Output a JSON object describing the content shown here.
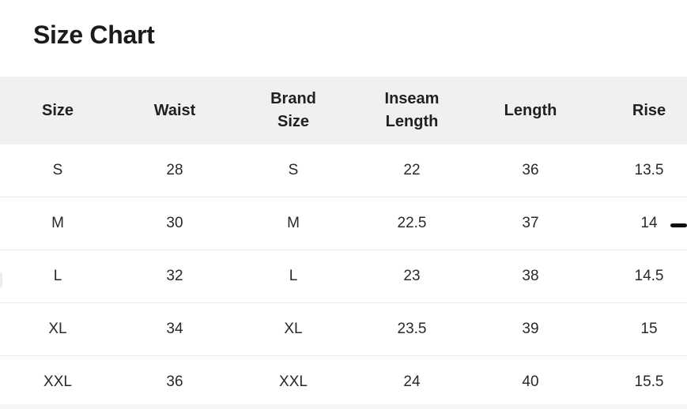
{
  "page": {
    "title": "Size Chart"
  },
  "size_chart": {
    "columns": [
      "Size",
      "Waist",
      "Brand Size",
      "Inseam Length",
      "Length",
      "Rise"
    ],
    "rows": [
      [
        "S",
        "28",
        "S",
        "22",
        "36",
        "13.5"
      ],
      [
        "M",
        "30",
        "M",
        "22.5",
        "37",
        "14"
      ],
      [
        "L",
        "32",
        "L",
        "23",
        "38",
        "14.5"
      ],
      [
        "XL",
        "34",
        "XL",
        "23.5",
        "39",
        "15"
      ],
      [
        "XXL",
        "36",
        "XXL",
        "24",
        "40",
        "15.5"
      ]
    ]
  },
  "colors": {
    "header_background": "#f0f0f1",
    "row_divider": "#eaeaec",
    "title_text": "#1a1b1e",
    "body_text": "#28292c",
    "bottom_band": "#f5f5f6",
    "dash_mark": "#0f0f10"
  }
}
